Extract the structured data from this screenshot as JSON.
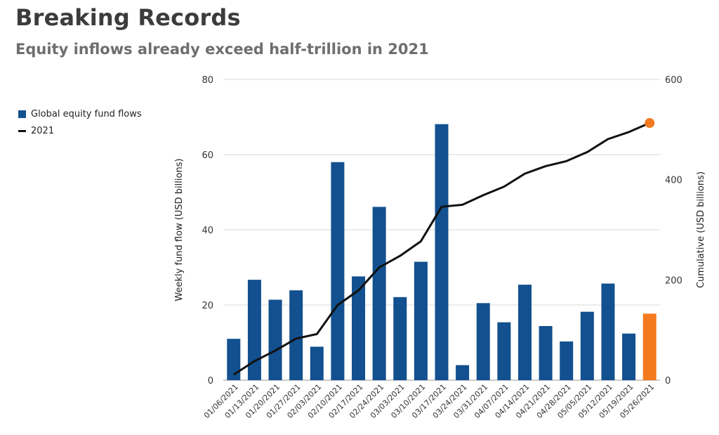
{
  "title": "Breaking Records",
  "subtitle": "Equity inflows already exceed half-trillion in 2021",
  "colors": {
    "bar": "#12508f",
    "highlight": "#f47a1f",
    "line": "#111111",
    "grid": "#d9d9d9"
  },
  "chart_data": {
    "type": "bar",
    "title": "Breaking Records",
    "subtitle": "Equity inflows already exceed half-trillion in 2021",
    "categories": [
      "01/06/2021",
      "01/13/2021",
      "01/20/2021",
      "01/27/2021",
      "02/03/2021",
      "02/10/2021",
      "02/17/2021",
      "02/24/2021",
      "03/03/2021",
      "03/10/2021",
      "03/17/2021",
      "03/24/2021",
      "03/31/2021",
      "04/07/2021",
      "04/14/2021",
      "04/21/2021",
      "04/28/2021",
      "05/05/2021",
      "05/12/2021",
      "05/19/2021",
      "05/26/2021"
    ],
    "series": [
      {
        "name": "Global equity fund flows",
        "type": "bar",
        "axis": "left",
        "values": [
          11,
          26.7,
          21.4,
          23.9,
          8.9,
          58,
          27.6,
          46.1,
          22.1,
          31.5,
          68.1,
          4,
          20.5,
          15.4,
          25.4,
          14.4,
          10.3,
          18.2,
          25.7,
          12.4,
          17.7
        ]
      },
      {
        "name": "2021",
        "type": "line",
        "axis": "right",
        "values": [
          11,
          38,
          59,
          83,
          92,
          150,
          179,
          225,
          248,
          277,
          346,
          350,
          369,
          386,
          412,
          427,
          437,
          455,
          481,
          495,
          513
        ]
      }
    ],
    "highlight_index": 20,
    "ylabel": "Weekly fund flow (USD billions)",
    "y2label": "Cumulative (USD billions)",
    "ylim": [
      0,
      80
    ],
    "y2lim": [
      0,
      600
    ],
    "yticks": [
      0,
      20,
      40,
      60,
      80
    ],
    "y2ticks": [
      0,
      200,
      400,
      600
    ],
    "grid": true,
    "legend_position": "top-left"
  }
}
